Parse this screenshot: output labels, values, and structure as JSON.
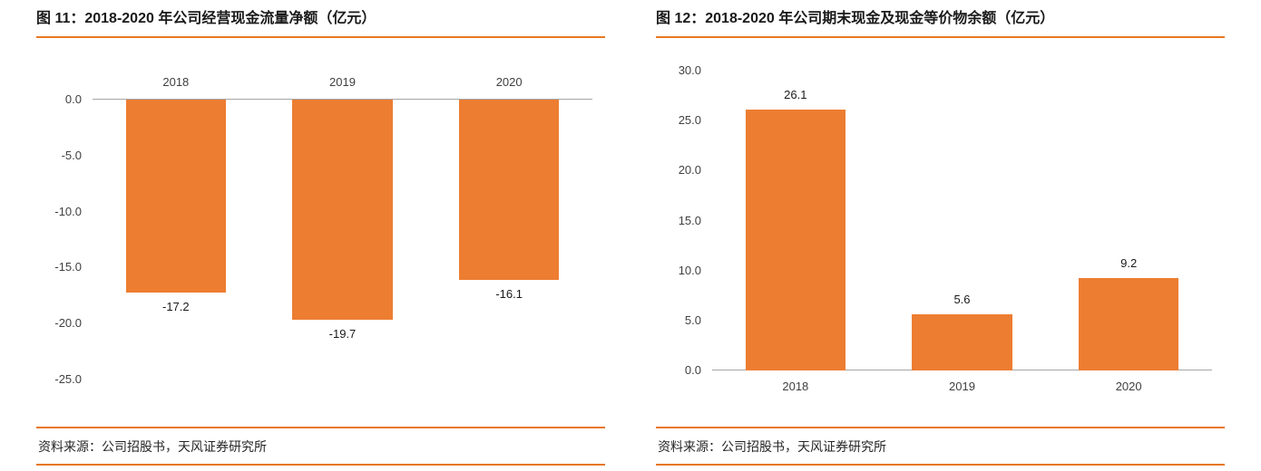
{
  "colors": {
    "bar": "#ED7D31",
    "rule": "#E87722",
    "axis": "#A6A6A6"
  },
  "chart_data": [
    {
      "type": "bar",
      "title": "图 11：2018-2020 年公司经营现金流量净额（亿元）",
      "source": "资料来源：公司招股书，天风证券研究所",
      "categories": [
        "2018",
        "2019",
        "2020"
      ],
      "values": [
        -17.2,
        -19.7,
        -16.1
      ],
      "data_labels": [
        "-17.2",
        "-19.7",
        "-16.1"
      ],
      "ylim": [
        -25,
        0
      ],
      "yticks": [
        0,
        -5,
        -10,
        -15,
        -20,
        -25
      ],
      "ytick_labels": [
        "0.0",
        "-5.0",
        "-10.0",
        "-15.0",
        "-20.0",
        "-25.0"
      ],
      "category_label_position": "top",
      "grid": false,
      "legend": false
    },
    {
      "type": "bar",
      "title": "图 12：2018-2020 年公司期末现金及现金等价物余额（亿元）",
      "source": "资料来源：公司招股书，天风证券研究所",
      "categories": [
        "2018",
        "2019",
        "2020"
      ],
      "values": [
        26.1,
        5.6,
        9.2
      ],
      "data_labels": [
        "26.1",
        "5.6",
        "9.2"
      ],
      "ylim": [
        0,
        30
      ],
      "yticks": [
        30,
        25,
        20,
        15,
        10,
        5,
        0
      ],
      "ytick_labels": [
        "30.0",
        "25.0",
        "20.0",
        "15.0",
        "10.0",
        "5.0",
        "0.0"
      ],
      "category_label_position": "bottom",
      "grid": false,
      "legend": false
    }
  ]
}
